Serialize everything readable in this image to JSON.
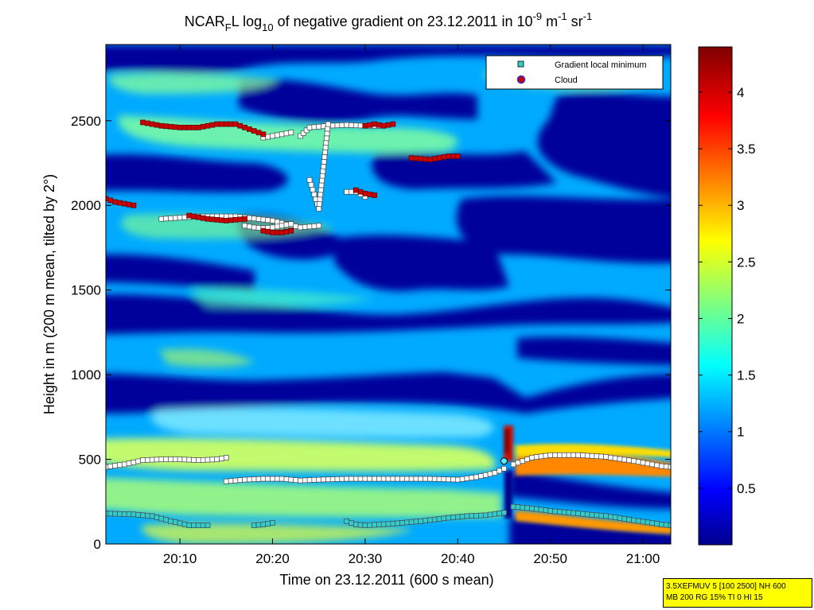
{
  "chart_data": {
    "type": "heatmap",
    "title": {
      "prefix": "NCAR",
      "sub1": "F",
      "mid1": "L log",
      "sub2": "10",
      "mid2": " of negative gradient on 23.12.2011 in 10",
      "sup1": "-9",
      "mid3": " m",
      "sup2": "-1",
      "mid4": " sr",
      "sup3": "-1"
    },
    "xlabel": "Time on 23.12.2011 (600 s mean)",
    "ylabel": "Height in m (200 m mean, tilted by 2°)",
    "xlim": [
      "20:02",
      "21:03"
    ],
    "ylim": [
      0,
      2950
    ],
    "x_ticks": [
      "20:10",
      "20:20",
      "20:30",
      "20:40",
      "20:50",
      "21:00"
    ],
    "y_ticks": [
      "0",
      "500",
      "1000",
      "1500",
      "2000",
      "2500"
    ],
    "colorbar": {
      "range": [
        0,
        4.4
      ],
      "ticks": [
        "0.5",
        "1",
        "1.5",
        "2",
        "2.5",
        "3",
        "3.5",
        "4"
      ],
      "colormap": "jet"
    },
    "legend": {
      "position": "top-right",
      "entries": [
        {
          "label": "Gradient local minimum",
          "color": "#33cccc"
        },
        {
          "label": "Cloud",
          "color": "#cc0000"
        }
      ]
    },
    "series": [
      {
        "name": "Gradient local minimum",
        "segments": [
          {
            "x": [
              "20:02",
              "20:04",
              "20:06",
              "20:08",
              "20:10",
              "20:12",
              "20:14",
              "20:15"
            ],
            "y": [
              455,
              470,
              495,
              500,
              500,
              495,
              500,
              510
            ]
          },
          {
            "x": [
              "20:15",
              "20:17",
              "20:19",
              "20:21",
              "20:23",
              "20:25",
              "20:28",
              "20:31",
              "20:34",
              "20:37",
              "20:40",
              "20:42",
              "20:44",
              "20:45"
            ],
            "y": [
              370,
              380,
              385,
              385,
              375,
              380,
              385,
              385,
              385,
              385,
              380,
              395,
              420,
              445
            ]
          },
          {
            "x": [
              "20:02",
              "20:05",
              "20:07",
              "20:09",
              "20:11",
              "20:13"
            ],
            "y": [
              180,
              175,
              165,
              135,
              110,
              110
            ]
          },
          {
            "x": [
              "20:18",
              "20:19",
              "20:20"
            ],
            "y": [
              110,
              115,
              125
            ]
          },
          {
            "x": [
              "20:28",
              "20:29",
              "20:30",
              "20:33",
              "20:36",
              "20:39",
              "20:41",
              "20:43",
              "20:45"
            ],
            "y": [
              135,
              115,
              110,
              120,
              135,
              155,
              165,
              170,
              185
            ]
          },
          {
            "x": [
              "20:46",
              "20:48",
              "20:50",
              "20:53",
              "20:56",
              "20:59",
              "21:02",
              "21:03"
            ],
            "y": [
              470,
              510,
              525,
              525,
              515,
              490,
              460,
              455
            ]
          },
          {
            "x": [
              "20:46",
              "20:48",
              "20:50",
              "20:53",
              "20:56",
              "20:59",
              "21:02",
              "21:03"
            ],
            "y": [
              220,
              210,
              195,
              180,
              165,
              140,
              115,
              110
            ]
          },
          {
            "x": [
              "20:08",
              "20:12",
              "20:16",
              "20:20",
              "20:23",
              "20:25"
            ],
            "y": [
              1920,
              1935,
              1935,
              1910,
              1870,
              1880
            ]
          },
          {
            "x": [
              "20:17",
              "20:18",
              "20:19",
              "20:20",
              "20:21",
              "20:22"
            ],
            "y": [
              1880,
              1870,
              1865,
              1870,
              1880,
              1890
            ]
          },
          {
            "x": [
              "20:23",
              "20:24",
              "20:26",
              "20:28",
              "20:30",
              "20:32"
            ],
            "y": [
              2410,
              2460,
              2470,
              2475,
              2470,
              2470
            ]
          },
          {
            "x": [
              "20:28",
              "20:29",
              "20:30"
            ],
            "y": [
              2080,
              2080,
              2050
            ]
          },
          {
            "x": [
              "20:19",
              "20:20",
              "20:21",
              "20:22"
            ],
            "y": [
              2400,
              2410,
              2420,
              2430
            ]
          },
          {
            "x": [
              "20:24",
              "20:25",
              "20:26"
            ],
            "y": [
              2150,
              1980,
              2480
            ]
          }
        ]
      },
      {
        "name": "Cloud",
        "segments": [
          {
            "x": [
              "20:02",
              "20:03",
              "20:04",
              "20:05"
            ],
            "y": [
              2040,
              2020,
              2010,
              2000
            ]
          },
          {
            "x": [
              "20:06",
              "20:08",
              "20:10",
              "20:12",
              "20:14",
              "20:16",
              "20:18",
              "20:19"
            ],
            "y": [
              2490,
              2470,
              2460,
              2460,
              2480,
              2480,
              2440,
              2420
            ]
          },
          {
            "x": [
              "20:11",
              "20:13",
              "20:15",
              "20:17"
            ],
            "y": [
              1940,
              1920,
              1910,
              1920
            ]
          },
          {
            "x": [
              "20:19",
              "20:20",
              "20:21",
              "20:22"
            ],
            "y": [
              1850,
              1840,
              1840,
              1850
            ]
          },
          {
            "x": [
              "20:29",
              "20:30",
              "20:31"
            ],
            "y": [
              2090,
              2070,
              2060
            ]
          },
          {
            "x": [
              "20:30",
              "20:31",
              "20:32",
              "20:33"
            ],
            "y": [
              2470,
              2480,
              2470,
              2480
            ]
          },
          {
            "x": [
              "20:35",
              "20:37",
              "20:39",
              "20:40"
            ],
            "y": [
              2280,
              2270,
              2290,
              2290
            ]
          }
        ]
      }
    ]
  },
  "annotation_box": {
    "line1": "3.5XEFMUV 5 [100 2500] NH 600",
    "line2": "MB 200 RG 15% TI 0 HI 15"
  }
}
